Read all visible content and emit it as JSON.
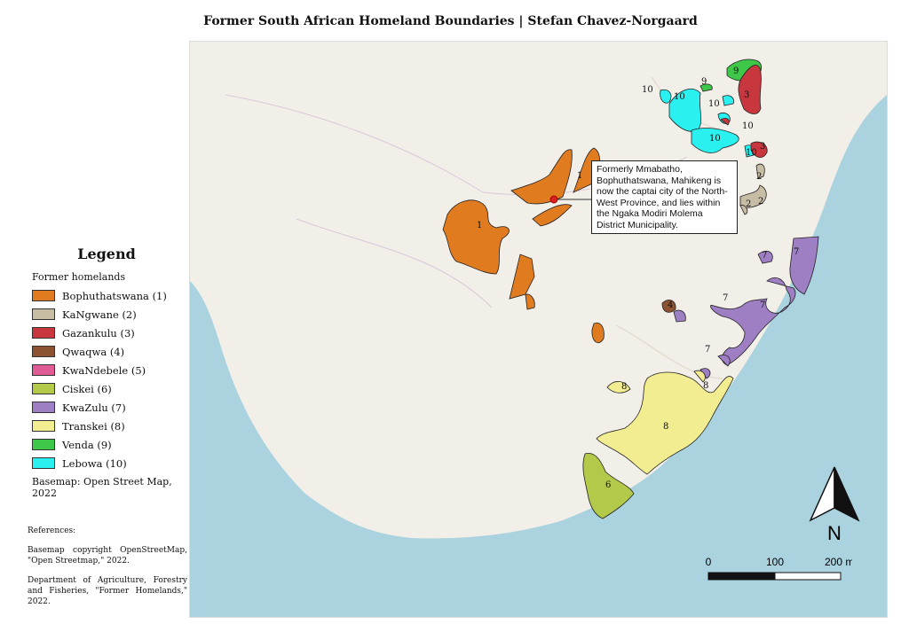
{
  "title": "Former South African Homeland Boundaries | Stefan Chavez-Norgaard",
  "legend": {
    "title": "Legend",
    "subtitle": "Former homelands",
    "items": [
      {
        "label": "Bophuthatswana (1)",
        "color": "#e07b1f"
      },
      {
        "label": "KaNgwane (2)",
        "color": "#c7bca4"
      },
      {
        "label": "Gazankulu (3)",
        "color": "#c8363e"
      },
      {
        "label": "Qwaqwa (4)",
        "color": "#8b5332"
      },
      {
        "label": "KwaNdebele (5)",
        "color": "#e05c96"
      },
      {
        "label": "Ciskei (6)",
        "color": "#b3c94a"
      },
      {
        "label": "KwaZulu (7)",
        "color": "#9e7fc4"
      },
      {
        "label": "Transkei (8)",
        "color": "#f2ed91"
      },
      {
        "label": "Venda (9)",
        "color": "#3fc74a"
      },
      {
        "label": "Lebowa (10)",
        "color": "#2bf0f0"
      }
    ],
    "basemap": "Basemap: Open Street Map,  2022"
  },
  "references": {
    "heading": "References:",
    "entries": [
      "Basemap copyright OpenStreetMap, \"Open Streetmap,\" 2022.",
      "Department of Agriculture, Forestry and Fisheries, \"Former Homelands,\" 2022."
    ]
  },
  "callout": {
    "text": "Formerly Mmabatho, Bophuthatswana, Mahikeng is now the captai city of the North-West Province, and lies within the Ngaka Modiri Molema District Municipality."
  },
  "north_arrow": {
    "label": "N"
  },
  "scale_bar": {
    "ticks": [
      "0",
      "100",
      "200 mi"
    ]
  },
  "map_labels": {
    "bophuthatswana": "1",
    "kangwane": "2",
    "gazankulu": "3",
    "qwaqwa": "4",
    "kwandebele": "5",
    "ciskei": "6",
    "kwazulu": "7",
    "transkei": "8",
    "venda": "9",
    "lebowa": "10"
  },
  "colors": {
    "ocean": "#aad3df",
    "land": "#f2efe9",
    "border": "#222222"
  }
}
